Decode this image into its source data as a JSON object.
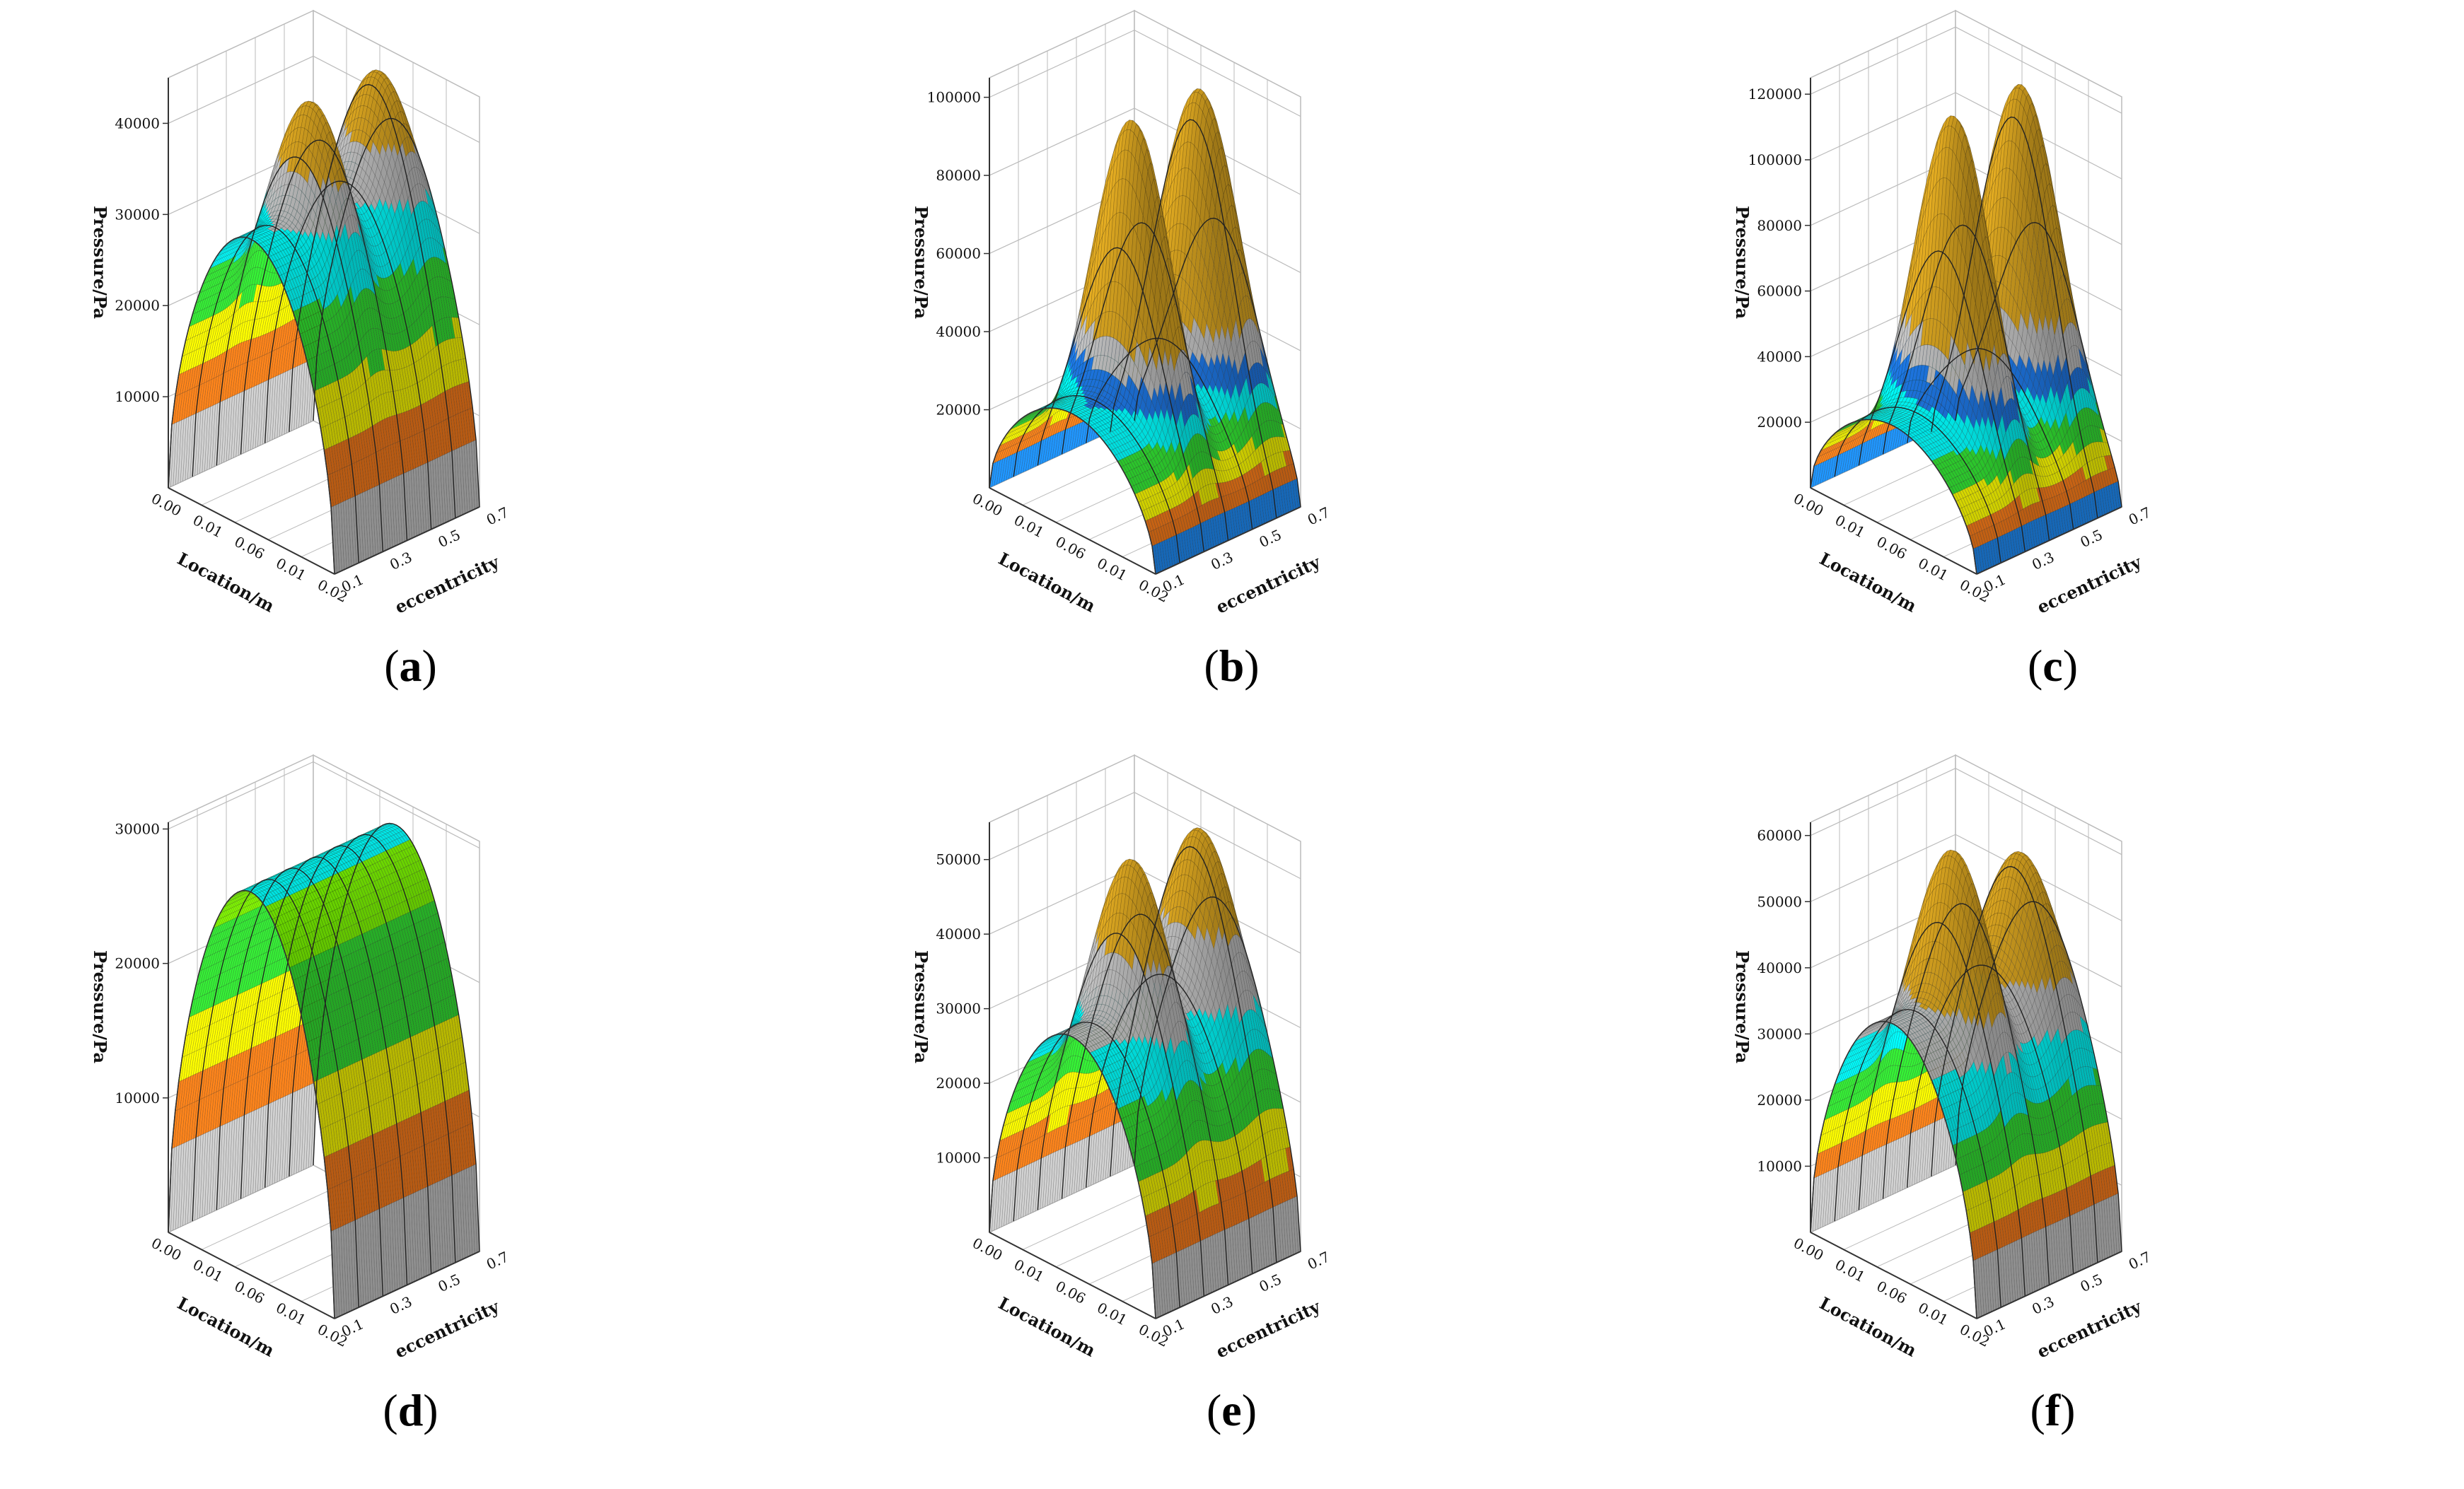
{
  "chart_data": [
    {
      "id": "a",
      "type": "surface3d",
      "caption": "a",
      "ylabel": "Pressure/Pa",
      "xlabel": "Location/m",
      "zlabel": "eccentricity",
      "zticks": [
        10000,
        20000,
        30000,
        40000
      ],
      "zmax": 45000,
      "xticks": [
        "0.00",
        "0.01",
        "0.06",
        "0.01",
        "0.02"
      ],
      "eticks": [
        "0.1",
        "0.3",
        "0.5",
        "0.7"
      ],
      "plateau": 32000,
      "peakLeft": 44000,
      "peakRight": 44000,
      "bands": [
        {
          "to": 5000,
          "color": "#c8c8c8"
        },
        {
          "to": 13000,
          "color": "#ff7f1a"
        },
        {
          "to": 19000,
          "color": "#ffff00"
        },
        {
          "to": 26000,
          "color": "#33e633"
        },
        {
          "to": 32000,
          "color": "#00ffff"
        },
        {
          "to": 37000,
          "color": "#c0c0c0"
        },
        {
          "to": 130000,
          "color": "#daa520"
        }
      ]
    },
    {
      "id": "b",
      "type": "surface3d",
      "caption": "b",
      "ylabel": "Pressure/Pa",
      "xlabel": "Location/m",
      "zlabel": "eccentricity",
      "zticks": [
        20000,
        40000,
        60000,
        80000,
        100000
      ],
      "zmax": 105000,
      "xticks": [
        "0.00",
        "0.01",
        "0.06",
        "0.01",
        "0.02"
      ],
      "eticks": [
        "0.1",
        "0.3",
        "0.5",
        "0.7"
      ],
      "plateau": 30000,
      "peakLeft": 98000,
      "peakRight": 98000,
      "bands": [
        {
          "to": 6000,
          "color": "#1e90ff"
        },
        {
          "to": 12000,
          "color": "#ff7f1a"
        },
        {
          "to": 18000,
          "color": "#ffff00"
        },
        {
          "to": 24000,
          "color": "#33e633"
        },
        {
          "to": 30000,
          "color": "#00ffff"
        },
        {
          "to": 36000,
          "color": "#1e78e6"
        },
        {
          "to": 43000,
          "color": "#c0c0c0"
        },
        {
          "to": 130000,
          "color": "#daa520"
        }
      ]
    },
    {
      "id": "c",
      "type": "surface3d",
      "caption": "c",
      "ylabel": "Pressure/Pa",
      "xlabel": "Location/m",
      "zlabel": "eccentricity",
      "zticks": [
        20000,
        40000,
        60000,
        80000,
        100000,
        120000
      ],
      "zmax": 125000,
      "xticks": [
        "0.00",
        "0.01",
        "0.06",
        "0.01",
        "0.02"
      ],
      "eticks": [
        "0.1",
        "0.3",
        "0.5",
        "0.7"
      ],
      "plateau": 32000,
      "peakLeft": 118000,
      "peakRight": 118000,
      "bands": [
        {
          "to": 6000,
          "color": "#1e90ff"
        },
        {
          "to": 13000,
          "color": "#ff7f1a"
        },
        {
          "to": 20000,
          "color": "#ffff00"
        },
        {
          "to": 27000,
          "color": "#33e633"
        },
        {
          "to": 34000,
          "color": "#00ffff"
        },
        {
          "to": 42000,
          "color": "#1e78e6"
        },
        {
          "to": 52000,
          "color": "#c0c0c0"
        },
        {
          "to": 130000,
          "color": "#daa520"
        }
      ]
    },
    {
      "id": "d",
      "type": "surface3d",
      "caption": "d",
      "ylabel": "Pressure/Pa",
      "xlabel": "Location/m",
      "zlabel": "eccentricity",
      "zticks": [
        10000,
        20000,
        30000
      ],
      "zmax": 30500,
      "xticks": [
        "0.00",
        "0.01",
        "0.06",
        "0.01",
        "0.02"
      ],
      "eticks": [
        "0.1",
        "0.3",
        "0.5",
        "0.7"
      ],
      "plateau": 28500,
      "peakLeft": 28500,
      "peakRight": 28500,
      "bands": [
        {
          "to": 5000,
          "color": "#c8c8c8"
        },
        {
          "to": 11000,
          "color": "#ff7f1a"
        },
        {
          "to": 17000,
          "color": "#ffff00"
        },
        {
          "to": 24000,
          "color": "#33e633"
        },
        {
          "to": 28000,
          "color": "#7fff00"
        },
        {
          "to": 130000,
          "color": "#00ffff"
        }
      ]
    },
    {
      "id": "e",
      "type": "surface3d",
      "caption": "e",
      "ylabel": "Pressure/Pa",
      "xlabel": "Location/m",
      "zlabel": "eccentricity",
      "zticks": [
        10000,
        20000,
        30000,
        40000,
        50000
      ],
      "zmax": 55000,
      "xticks": [
        "0.00",
        "0.01",
        "0.06",
        "0.01",
        "0.02"
      ],
      "eticks": [
        "0.1",
        "0.3",
        "0.5",
        "0.7"
      ],
      "plateau": 32000,
      "peakLeft": 52000,
      "peakRight": 52000,
      "bands": [
        {
          "to": 6000,
          "color": "#c8c8c8"
        },
        {
          "to": 12000,
          "color": "#ff7f1a"
        },
        {
          "to": 18000,
          "color": "#ffff00"
        },
        {
          "to": 25000,
          "color": "#33e633"
        },
        {
          "to": 31000,
          "color": "#00ffff"
        },
        {
          "to": 40000,
          "color": "#c0c0c0"
        },
        {
          "to": 130000,
          "color": "#daa520"
        }
      ]
    },
    {
      "id": "f",
      "type": "surface3d",
      "caption": "f",
      "ylabel": "Pressure/Pa",
      "xlabel": "Location/m",
      "zlabel": "eccentricity",
      "zticks": [
        10000,
        20000,
        30000,
        40000,
        50000,
        60000
      ],
      "zmax": 62000,
      "xticks": [
        "0.00",
        "0.01",
        "0.06",
        "0.01",
        "0.02"
      ],
      "eticks": [
        "0.1",
        "0.3",
        "0.5",
        "0.7"
      ],
      "plateau": 38000,
      "peakLeft": 60000,
      "peakRight": 55000,
      "bands": [
        {
          "to": 6000,
          "color": "#c8c8c8"
        },
        {
          "to": 12000,
          "color": "#ff7f1a"
        },
        {
          "to": 18000,
          "color": "#ffff00"
        },
        {
          "to": 25000,
          "color": "#33e633"
        },
        {
          "to": 32000,
          "color": "#00ffff"
        },
        {
          "to": 38500,
          "color": "#c0c0c0"
        },
        {
          "to": 130000,
          "color": "#daa520"
        }
      ]
    }
  ],
  "colors": {
    "grid": "#bbbbbb",
    "axis": "#333333",
    "mesh": "#222222"
  }
}
